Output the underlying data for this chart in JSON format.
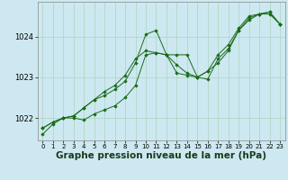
{
  "bg_color": "#cde8f0",
  "grid_color": "#b0d8c8",
  "line_color": "#1a6b1a",
  "marker_color": "#1a6b1a",
  "xlabel": "Graphe pression niveau de la mer (hPa)",
  "xlabel_fontsize": 7.5,
  "tick_fontsize": 6,
  "yticks": [
    1022,
    1023,
    1024
  ],
  "ylim": [
    1021.45,
    1024.85
  ],
  "xlim": [
    -0.5,
    23.5
  ],
  "xticks": [
    0,
    1,
    2,
    3,
    4,
    5,
    6,
    7,
    8,
    9,
    10,
    11,
    12,
    13,
    14,
    15,
    16,
    17,
    18,
    19,
    20,
    21,
    22,
    23
  ],
  "series": [
    [
      1021.6,
      1021.85,
      1022.0,
      1022.0,
      1021.95,
      1022.1,
      1022.2,
      1022.3,
      1022.5,
      1022.8,
      1023.55,
      1023.6,
      1023.55,
      1023.55,
      1023.55,
      1023.0,
      1023.15,
      1023.55,
      1023.8,
      1024.2,
      1024.5,
      1024.55,
      1024.55,
      1024.3
    ],
    [
      1021.75,
      1021.9,
      1022.0,
      1022.05,
      1022.25,
      1022.45,
      1022.55,
      1022.7,
      1022.9,
      1023.35,
      1024.05,
      1024.15,
      1023.55,
      1023.3,
      1023.1,
      1023.0,
      1023.15,
      1023.35,
      1023.65,
      1024.15,
      1024.4,
      1024.55,
      1024.6,
      1024.3
    ],
    [
      1021.75,
      1021.9,
      1022.0,
      1022.05,
      1022.25,
      1022.45,
      1022.65,
      1022.8,
      1023.05,
      1023.45,
      1023.65,
      1023.6,
      1023.55,
      1023.1,
      1023.05,
      1023.0,
      1022.95,
      1023.45,
      1023.7,
      1024.15,
      1024.45,
      1024.55,
      1024.6,
      1024.3
    ]
  ]
}
